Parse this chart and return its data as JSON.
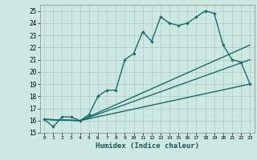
{
  "xlabel": "Humidex (Indice chaleur)",
  "bg_color": "#cce8e0",
  "grid_color": "#aacccc",
  "line_color": "#1a6b6b",
  "xlim": [
    -0.5,
    23.5
  ],
  "ylim": [
    15,
    25.5
  ],
  "xticks": [
    0,
    1,
    2,
    3,
    4,
    5,
    6,
    7,
    8,
    9,
    10,
    11,
    12,
    13,
    14,
    15,
    16,
    17,
    18,
    19,
    20,
    21,
    22,
    23
  ],
  "yticks": [
    15,
    16,
    17,
    18,
    19,
    20,
    21,
    22,
    23,
    24,
    25
  ],
  "series": [
    {
      "x": [
        0,
        1,
        2,
        3,
        4,
        5,
        6,
        7,
        8,
        9,
        10,
        11,
        12,
        13,
        14,
        15,
        16,
        17,
        18,
        19,
        20,
        21,
        22,
        23
      ],
      "y": [
        16.1,
        15.5,
        16.3,
        16.3,
        16.0,
        16.5,
        18.0,
        18.5,
        18.5,
        21.0,
        21.5,
        23.3,
        22.5,
        24.5,
        24.0,
        23.8,
        24.0,
        24.5,
        25.0,
        24.8,
        22.2,
        21.0,
        20.8,
        19.0
      ],
      "has_marker": true,
      "linewidth": 1.0
    },
    {
      "x": [
        0,
        4,
        23
      ],
      "y": [
        16.1,
        16.0,
        19.0
      ],
      "has_marker": false,
      "linewidth": 1.0
    },
    {
      "x": [
        0,
        4,
        23
      ],
      "y": [
        16.1,
        16.0,
        21.0
      ],
      "has_marker": false,
      "linewidth": 1.0
    },
    {
      "x": [
        0,
        4,
        23
      ],
      "y": [
        16.1,
        16.0,
        22.2
      ],
      "has_marker": false,
      "linewidth": 1.0
    }
  ]
}
